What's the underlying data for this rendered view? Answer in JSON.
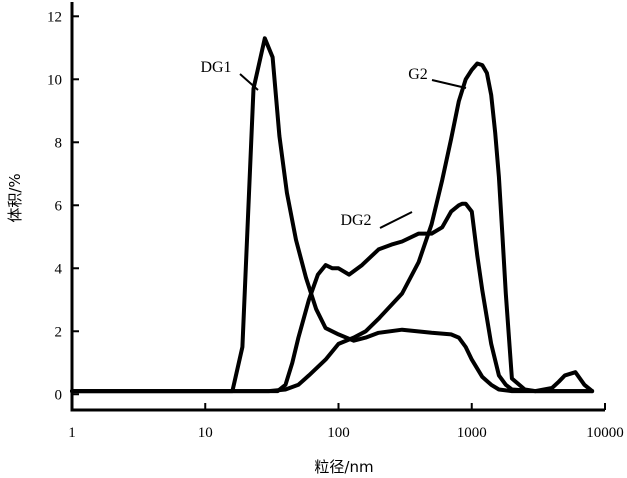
{
  "chart_data": {
    "type": "line",
    "xlabel": "粒径/nm",
    "ylabel": "体积/%",
    "xscale": "log",
    "xlim": [
      1,
      10000
    ],
    "ylim": [
      -0.5,
      12.2
    ],
    "x_ticks": [
      {
        "value": 1,
        "label": "1"
      },
      {
        "value": 10,
        "label": "10"
      },
      {
        "value": 100,
        "label": "100"
      },
      {
        "value": 1000,
        "label": "1000"
      },
      {
        "value": 10000,
        "label": "10000"
      }
    ],
    "y_ticks": [
      {
        "value": 0,
        "label": "0"
      },
      {
        "value": 2,
        "label": "2"
      },
      {
        "value": 4,
        "label": "4"
      },
      {
        "value": 6,
        "label": "6"
      },
      {
        "value": 8,
        "label": "8"
      },
      {
        "value": 10,
        "label": "10"
      },
      {
        "value": 12,
        "label": "12"
      }
    ],
    "grid": false,
    "legend": "none",
    "series": [
      {
        "name": "DG1",
        "x": [
          1,
          16,
          19,
          23,
          28,
          32,
          36,
          41,
          48,
          57,
          68,
          80,
          100,
          130,
          160,
          200,
          300,
          500,
          700,
          800,
          900,
          1000,
          1200,
          1400,
          1600,
          2000,
          3000,
          5000,
          8000
        ],
        "y": [
          0.1,
          0.1,
          1.5,
          9.7,
          11.3,
          10.7,
          8.2,
          6.4,
          4.9,
          3.7,
          2.7,
          2.1,
          1.9,
          1.7,
          1.8,
          1.95,
          2.05,
          1.95,
          1.9,
          1.8,
          1.5,
          1.1,
          0.55,
          0.3,
          0.15,
          0.1,
          0.1,
          0.1,
          0.1
        ]
      },
      {
        "name": "DG2",
        "x": [
          1,
          35,
          40,
          45,
          50,
          60,
          70,
          80,
          90,
          100,
          120,
          150,
          200,
          250,
          300,
          400,
          500,
          600,
          700,
          800,
          850,
          900,
          1000,
          1100,
          1200,
          1400,
          1600,
          1800,
          2000,
          3000,
          5000,
          8000
        ],
        "y": [
          0.1,
          0.1,
          0.3,
          1.0,
          1.8,
          3.0,
          3.8,
          4.1,
          4.0,
          4.0,
          3.8,
          4.1,
          4.6,
          4.75,
          4.85,
          5.1,
          5.1,
          5.3,
          5.8,
          6.0,
          6.05,
          6.05,
          5.8,
          4.4,
          3.3,
          1.6,
          0.6,
          0.3,
          0.15,
          0.1,
          0.1,
          0.1
        ]
      },
      {
        "name": "G2",
        "x": [
          1,
          30,
          40,
          50,
          60,
          80,
          100,
          130,
          160,
          200,
          300,
          400,
          500,
          600,
          700,
          800,
          900,
          1000,
          1100,
          1200,
          1300,
          1400,
          1500,
          1600,
          1700,
          1800,
          2000,
          2500,
          3000,
          4000,
          4500,
          5000,
          6000,
          7000,
          8000
        ],
        "y": [
          0.1,
          0.1,
          0.15,
          0.3,
          0.6,
          1.1,
          1.6,
          1.8,
          2.0,
          2.4,
          3.2,
          4.2,
          5.4,
          6.8,
          8.1,
          9.3,
          10.0,
          10.3,
          10.5,
          10.45,
          10.2,
          9.5,
          8.3,
          6.9,
          5.0,
          3.2,
          0.5,
          0.15,
          0.1,
          0.2,
          0.4,
          0.6,
          0.7,
          0.3,
          0.1
        ]
      }
    ],
    "annotations": [
      {
        "series": "DG1",
        "text": "DG1"
      },
      {
        "series": "DG2",
        "text": "DG2"
      },
      {
        "series": "G2",
        "text": "G2"
      }
    ]
  }
}
